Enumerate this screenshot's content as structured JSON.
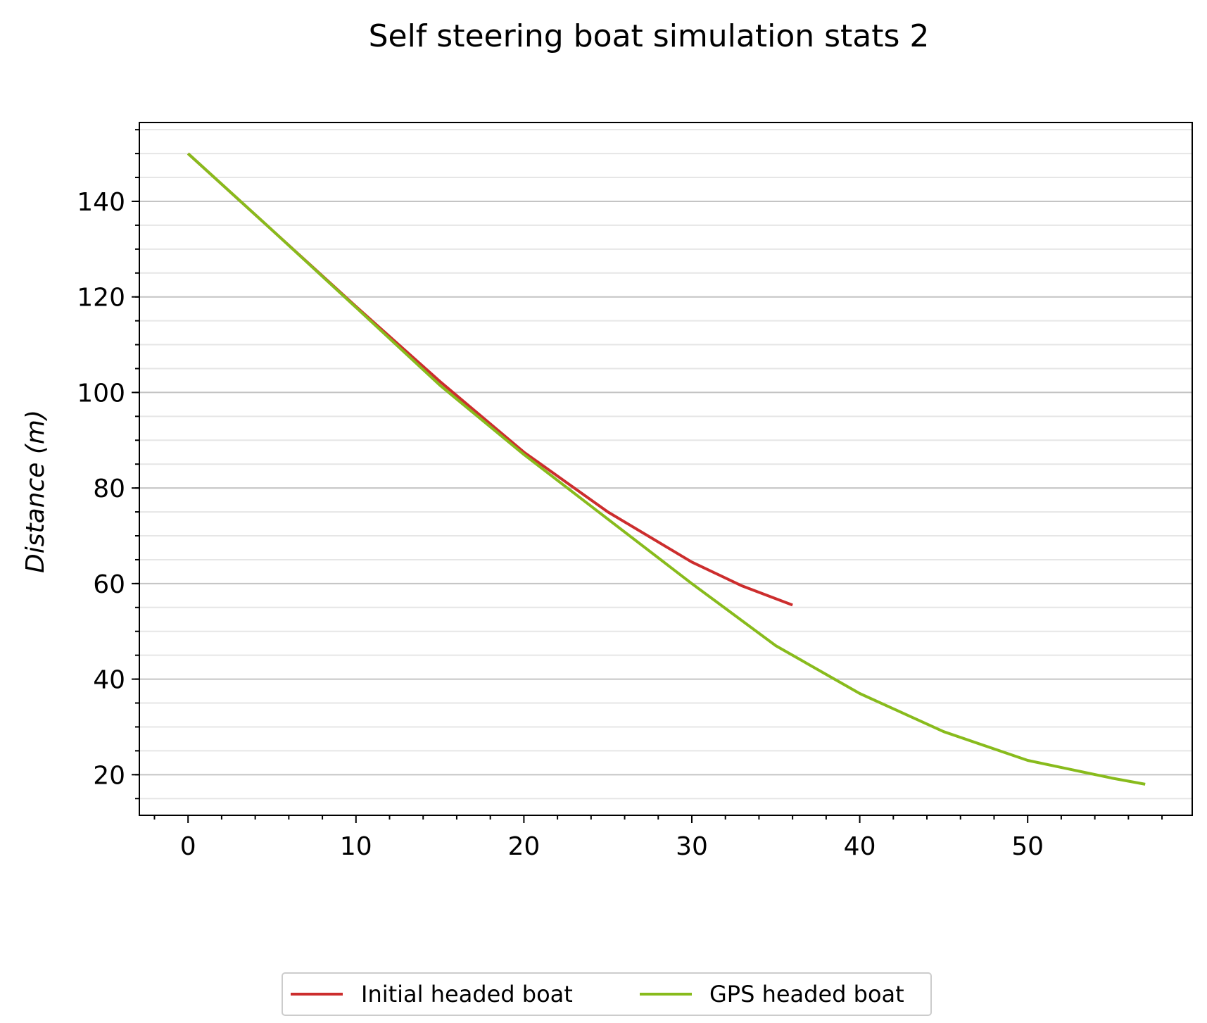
{
  "chart_data": {
    "type": "line",
    "title": "Self steering boat simulation stats 2",
    "xlabel": "",
    "ylabel": "Distance (m)",
    "ylabel_parts": {
      "main": "Distance (",
      "unit": "m",
      "close": ")"
    },
    "xlim": [
      -2.9,
      59.8
    ],
    "ylim": [
      11.5,
      156.5
    ],
    "xticks": [
      0,
      10,
      20,
      30,
      40,
      50
    ],
    "yticks": [
      20,
      40,
      60,
      80,
      100,
      120,
      140
    ],
    "grid": {
      "major_y": true,
      "minor_y": true,
      "x": false
    },
    "legend_position": "bottom-center",
    "series": [
      {
        "name": "Initial headed boat",
        "color": "#cc2d2d",
        "x": [
          0,
          5,
          10,
          15,
          20,
          25,
          30,
          33,
          36
        ],
        "y": [
          150,
          134,
          118,
          102.3,
          87.5,
          75,
          64.5,
          59.5,
          55.5
        ]
      },
      {
        "name": "GPS headed boat",
        "color": "#88bb1c",
        "x": [
          0,
          5,
          10,
          15,
          20,
          25,
          30,
          35,
          40,
          45,
          50,
          55,
          57
        ],
        "y": [
          150,
          134,
          117.8,
          101.5,
          87,
          73.5,
          60,
          47,
          37,
          29,
          23,
          19.3,
          18
        ]
      }
    ]
  }
}
